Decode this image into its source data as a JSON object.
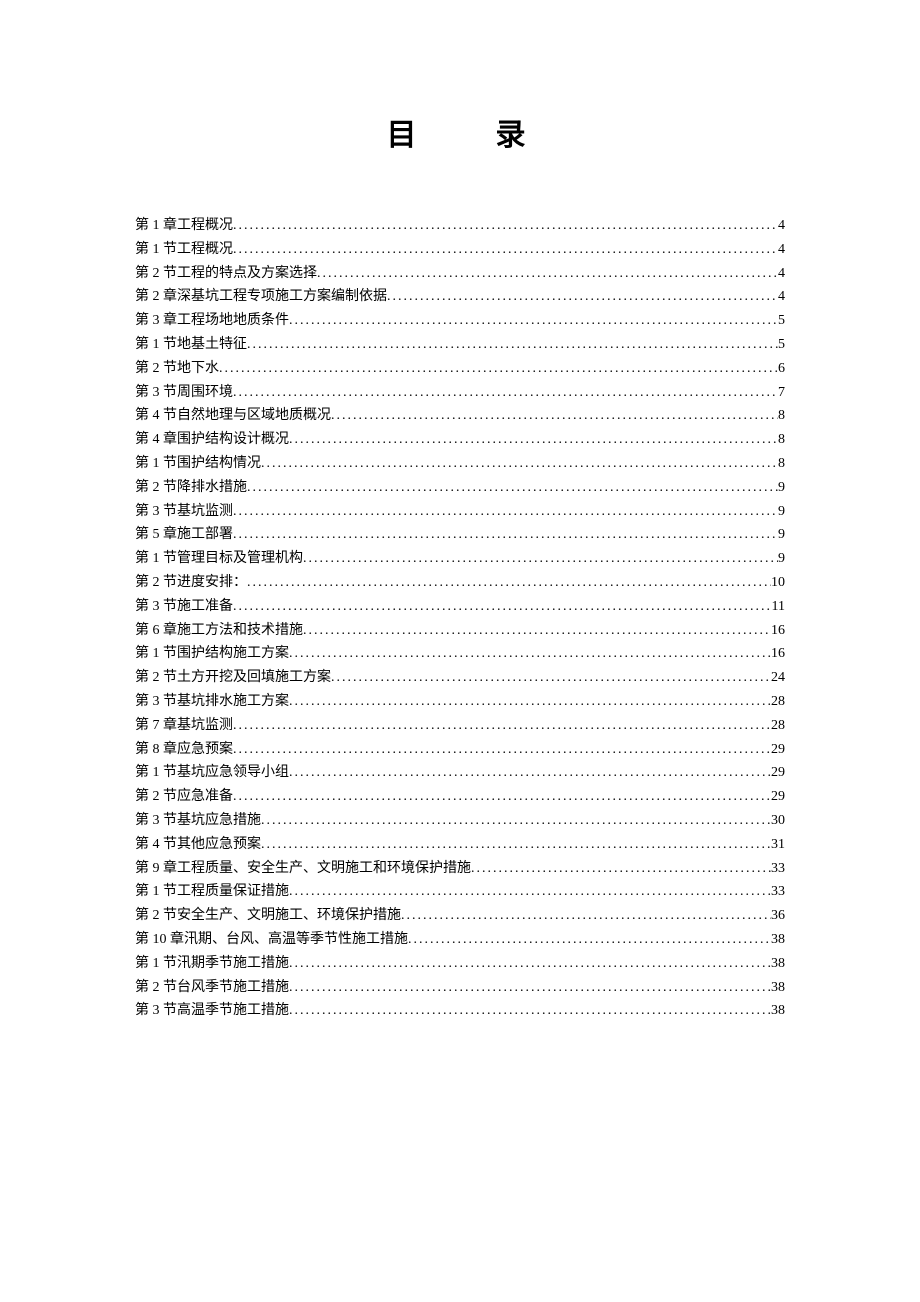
{
  "title_part1": "目",
  "title_part2": "录",
  "toc": [
    {
      "label": "第 1 章",
      "text": " 工程概况",
      "page": "4"
    },
    {
      "label": "第 1 节",
      "text": " 工程概况",
      "page": "4"
    },
    {
      "label": "第 2 节",
      "text": " 工程的特点及方案选择",
      "page": "4"
    },
    {
      "label": "第 2 章",
      "text": " 深基坑工程专项施工方案编制依据",
      "page": "4"
    },
    {
      "label": "第 3 章",
      "text": " 工程场地地质条件",
      "page": "5"
    },
    {
      "label": "第 1 节",
      "text": " 地基土特征",
      "page": "5"
    },
    {
      "label": "第 2 节",
      "text": " 地下水",
      "page": "6"
    },
    {
      "label": "第 3 节",
      "text": " 周围环境",
      "page": "7"
    },
    {
      "label": "第 4 节",
      "text": " 自然地理与区域地质概况",
      "page": "8"
    },
    {
      "label": "第 4 章",
      "text": " 围护结构设计概况",
      "page": "8"
    },
    {
      "label": "第 1 节",
      "text": " 围护结构情况",
      "page": "8"
    },
    {
      "label": "第 2 节",
      "text": " 降排水措施",
      "page": "9"
    },
    {
      "label": "第 3 节",
      "text": " 基坑监测",
      "page": "9"
    },
    {
      "label": "第 5 章",
      "text": " 施工部署",
      "page": "9"
    },
    {
      "label": "第 1 节",
      "text": " 管理目标及管理机构",
      "page": "9"
    },
    {
      "label": "第 2 节",
      "text": " 进度安排：",
      "page": "10"
    },
    {
      "label": "第 3 节",
      "text": " 施工准备",
      "page": "11"
    },
    {
      "label": "第 6 章",
      "text": " 施工方法和技术措施",
      "page": "16"
    },
    {
      "label": "第 1 节",
      "text": " 围护结构施工方案",
      "page": "16"
    },
    {
      "label": "第 2 节",
      "text": " 土方开挖及回填施工方案",
      "page": "24"
    },
    {
      "label": "第 3 节",
      "text": " 基坑排水施工方案",
      "page": "28"
    },
    {
      "label": "第 7 章",
      "text": " 基坑监测",
      "page": "28"
    },
    {
      "label": "第 8 章",
      "text": " 应急预案",
      "page": "29"
    },
    {
      "label": "第 1 节",
      "text": " 基坑应急领导小组",
      "page": "29"
    },
    {
      "label": "第 2 节",
      "text": " 应急准备",
      "page": "29"
    },
    {
      "label": "第 3 节",
      "text": " 基坑应急措施",
      "page": "30"
    },
    {
      "label": "第 4 节",
      "text": " 其他应急预案",
      "page": "31"
    },
    {
      "label": "第 9 章",
      "text": " 工程质量、安全生产、文明施工和环境保护措施",
      "page": "33"
    },
    {
      "label": "第 1 节",
      "text": " 工程质量保证措施",
      "page": "33"
    },
    {
      "label": "第 2 节",
      "text": " 安全生产、文明施工、环境保护措施",
      "page": "36"
    },
    {
      "label": "第 10 章",
      "text": "  汛期、台风、高温等季节性施工措施",
      "page": "38"
    },
    {
      "label": "第 1 节",
      "text": " 汛期季节施工措施",
      "page": "38"
    },
    {
      "label": "第 2 节",
      "text": " 台风季节施工措施",
      "page": "38"
    },
    {
      "label": "第 3 节",
      "text": " 高温季节施工措施",
      "page": "38"
    }
  ]
}
